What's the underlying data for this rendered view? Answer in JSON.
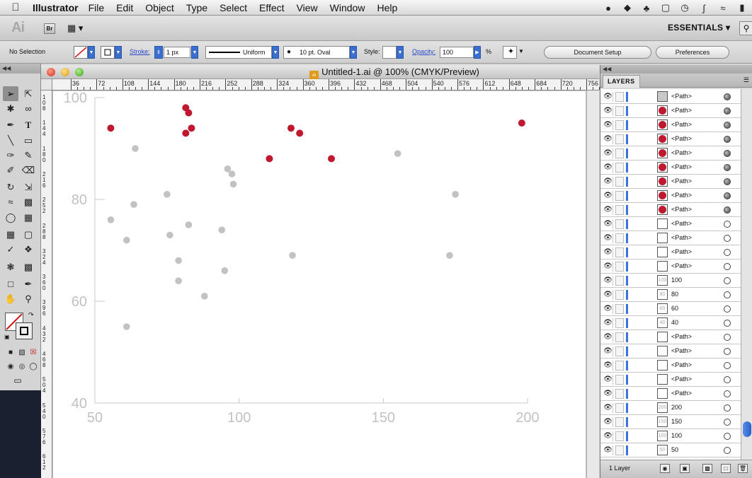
{
  "menubar": {
    "app_name": "Illustrator",
    "menus": [
      "File",
      "Edit",
      "Object",
      "Type",
      "Select",
      "Effect",
      "View",
      "Window",
      "Help"
    ]
  },
  "appbar": {
    "logo_text": "Ai",
    "bridge_label": "Br",
    "workspace": "ESSENTIALS ▾"
  },
  "control": {
    "selection": "No Selection",
    "stroke_label": "Stroke:",
    "stroke_weight": "1 px",
    "profile": "Uniform",
    "brush": "10 pt. Oval",
    "style_label": "Style:",
    "opacity_label": "Opacity:",
    "opacity_value": "100",
    "opacity_unit": "%",
    "document_setup": "Document Setup",
    "preferences": "Preferences"
  },
  "document": {
    "title": "Untitled-1.ai @ 100% (CMYK/Preview)",
    "ruler_h": [
      "36",
      "72",
      "108",
      "144",
      "180",
      "216",
      "252",
      "288",
      "324",
      "360",
      "396",
      "432",
      "468",
      "504",
      "540",
      "576",
      "612",
      "648",
      "684",
      "720",
      "756"
    ],
    "ruler_v": [
      "1 0 8",
      "1 4 4",
      "1 8 0",
      "2 1 6",
      "2 5 2",
      "2 8 8",
      "3 2 4",
      "3 6 0",
      "3 9 6",
      "4 3 2",
      "4 6 8",
      "5 0 4",
      "5 4 0",
      "5 7 6",
      "6 1 2"
    ]
  },
  "chart_data": {
    "type": "scatter",
    "title": "",
    "xlabel": "",
    "ylabel": "",
    "xlim": [
      50,
      200
    ],
    "ylim": [
      40,
      100
    ],
    "x_ticks": [
      "50",
      "100",
      "150",
      "200"
    ],
    "y_ticks": [
      "40",
      "60",
      "80",
      "100"
    ],
    "grid": false,
    "highlight_color": "#c0182f",
    "base_color": "#c2c2c2",
    "series": [
      {
        "points": [
          [
            55.5,
            76
          ],
          [
            61,
            72
          ],
          [
            61,
            55
          ],
          [
            63.5,
            79
          ],
          [
            64,
            90
          ],
          [
            75,
            81
          ],
          [
            76,
            73
          ],
          [
            79,
            68
          ],
          [
            79,
            64
          ],
          [
            82.5,
            75
          ],
          [
            88,
            61
          ],
          [
            94,
            74
          ],
          [
            95,
            66
          ],
          [
            96,
            86
          ],
          [
            97.5,
            85
          ],
          [
            98,
            83
          ],
          [
            118.5,
            69
          ],
          [
            155,
            89
          ],
          [
            173,
            69
          ],
          [
            175,
            81
          ]
        ]
      },
      {
        "points": [
          [
            55.5,
            94
          ],
          [
            81.5,
            98
          ],
          [
            82.5,
            97
          ],
          [
            81.5,
            93
          ],
          [
            83.5,
            94
          ],
          [
            110.5,
            88
          ],
          [
            118,
            94
          ],
          [
            121,
            93
          ],
          [
            132,
            88
          ],
          [
            198,
            95
          ]
        ]
      }
    ]
  },
  "layers": {
    "tab": "LAYERS",
    "count": "1 Layer",
    "rows": [
      {
        "name": "<Path>",
        "thumb": "grey",
        "target": "filled"
      },
      {
        "name": "<Path>",
        "thumb": "dot",
        "target": "filled"
      },
      {
        "name": "<Path>",
        "thumb": "dot",
        "target": "filled"
      },
      {
        "name": "<Path>",
        "thumb": "dot",
        "target": "filled"
      },
      {
        "name": "<Path>",
        "thumb": "dot",
        "target": "filled"
      },
      {
        "name": "<Path>",
        "thumb": "dot",
        "target": "filled"
      },
      {
        "name": "<Path>",
        "thumb": "dot",
        "target": "filled"
      },
      {
        "name": "<Path>",
        "thumb": "dot",
        "target": "filled"
      },
      {
        "name": "<Path>",
        "thumb": "dot",
        "target": "filled"
      },
      {
        "name": "<Path>",
        "thumb": "blank",
        "target": "empty"
      },
      {
        "name": "<Path>",
        "thumb": "blank",
        "target": "empty"
      },
      {
        "name": "<Path>",
        "thumb": "blank",
        "target": "empty"
      },
      {
        "name": "<Path>",
        "thumb": "blank",
        "target": "empty"
      },
      {
        "name": "100",
        "thumb": "text",
        "target": "empty"
      },
      {
        "name": "80",
        "thumb": "text",
        "target": "empty"
      },
      {
        "name": "60",
        "thumb": "text",
        "target": "empty"
      },
      {
        "name": "40",
        "thumb": "text",
        "target": "empty"
      },
      {
        "name": "<Path>",
        "thumb": "blank",
        "target": "empty"
      },
      {
        "name": "<Path>",
        "thumb": "blank",
        "target": "empty"
      },
      {
        "name": "<Path>",
        "thumb": "blank",
        "target": "empty"
      },
      {
        "name": "<Path>",
        "thumb": "blank",
        "target": "empty"
      },
      {
        "name": "<Path>",
        "thumb": "blank",
        "target": "empty"
      },
      {
        "name": "200",
        "thumb": "text",
        "target": "empty"
      },
      {
        "name": "150",
        "thumb": "text",
        "target": "empty"
      },
      {
        "name": "100",
        "thumb": "text",
        "target": "empty"
      },
      {
        "name": "50",
        "thumb": "text",
        "target": "empty"
      }
    ]
  }
}
